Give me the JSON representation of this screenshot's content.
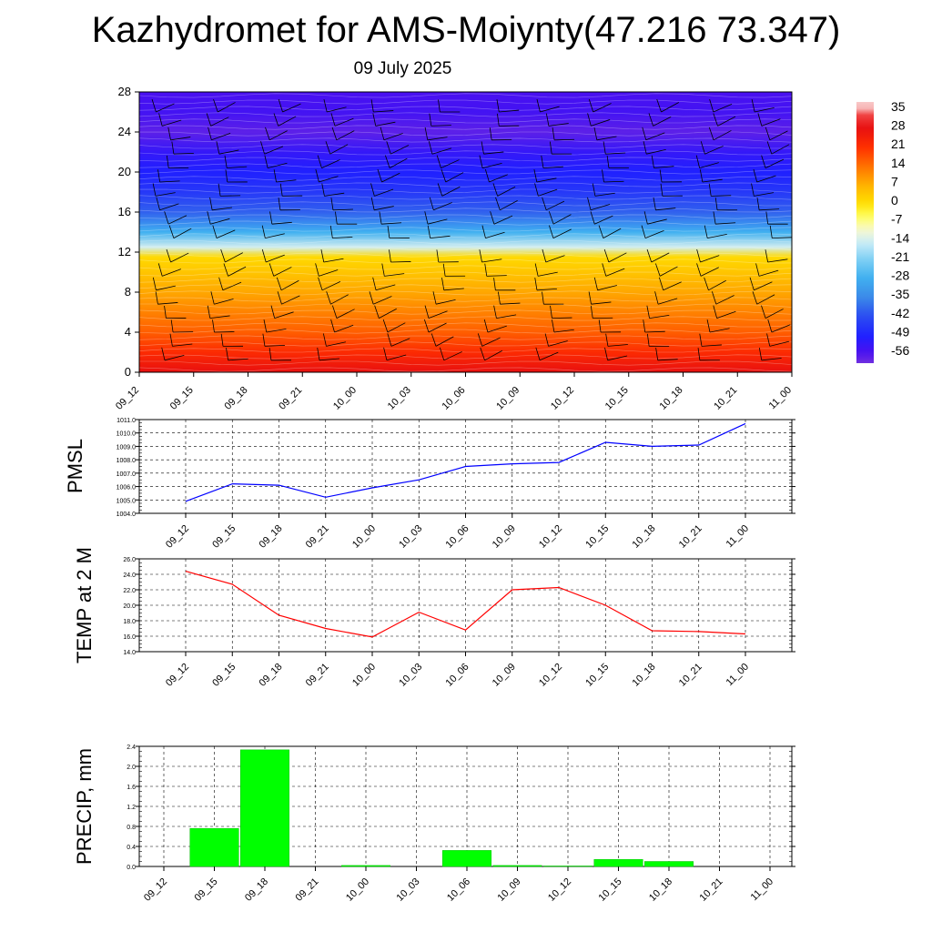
{
  "header": {
    "title": "Kazhydromet for AMS-Moiynty(47.216 73.347)",
    "date": "09 July 2025"
  },
  "colors": {
    "pmsl_line": "#0000ff",
    "temp_line": "#ff0000",
    "precip_bar": "#00ff00",
    "precip_bar_edge": "#00c000"
  },
  "chart_data": [
    {
      "type": "heatmap",
      "title": "",
      "x": [
        "09_12",
        "09_15",
        "09_18",
        "09_21",
        "10_00",
        "10_03",
        "10_06",
        "10_09",
        "10_12",
        "10_15",
        "10_18",
        "10_21",
        "11_00"
      ],
      "ylim": [
        0,
        28
      ],
      "yticks": [
        0,
        4,
        8,
        12,
        16,
        20,
        24,
        28
      ],
      "colorbar": {
        "labels": [
          "35",
          "28",
          "21",
          "14",
          "7",
          "0",
          "-7",
          "-14",
          "-21",
          "-28",
          "-35",
          "-42",
          "-49",
          "-56"
        ],
        "values": [
          35,
          28,
          21,
          14,
          7,
          0,
          -7,
          -14,
          -21,
          -28,
          -35,
          -42,
          -49,
          -56
        ]
      },
      "temperature_profile": {
        "heights": [
          0,
          2,
          4,
          6,
          8,
          10,
          11.5,
          12.5,
          14,
          16,
          18,
          20,
          22,
          24,
          26,
          28
        ],
        "values": [
          28,
          22,
          16,
          12,
          8,
          4,
          1,
          -14,
          -28,
          -40,
          -46,
          -50,
          -53,
          -58,
          -55,
          -56
        ]
      }
    },
    {
      "type": "line",
      "ylabel": "PMSL",
      "x": [
        "09_12",
        "09_15",
        "09_18",
        "09_21",
        "10_00",
        "10_03",
        "10_06",
        "10_09",
        "10_12",
        "10_15",
        "10_18",
        "10_21",
        "11_00"
      ],
      "values": [
        1004.9,
        1006.2,
        1006.1,
        1005.2,
        1005.9,
        1006.5,
        1007.5,
        1007.7,
        1007.8,
        1009.3,
        1009.0,
        1009.1,
        1010.7
      ],
      "ylim": [
        1004.0,
        1011.0
      ],
      "yticks": [
        "1004.0",
        "1005.0",
        "1006.0",
        "1007.0",
        "1008.0",
        "1009.0",
        "1010.0",
        "1011.0"
      ],
      "grid": true
    },
    {
      "type": "line",
      "ylabel": "TEMP at 2 M",
      "x": [
        "09_12",
        "09_15",
        "09_18",
        "09_21",
        "10_00",
        "10_03",
        "10_06",
        "10_09",
        "10_12",
        "10_15",
        "10_18",
        "10_21",
        "11_00"
      ],
      "values": [
        24.4,
        22.7,
        18.7,
        17.0,
        15.9,
        19.1,
        16.8,
        22.0,
        22.3,
        20.0,
        16.7,
        16.6,
        16.3
      ],
      "ylim": [
        14.0,
        26.0
      ],
      "yticks": [
        "14.0",
        "16.0",
        "18.0",
        "20.0",
        "22.0",
        "24.0",
        "26.0"
      ],
      "grid": true
    },
    {
      "type": "bar",
      "ylabel": "PRECIP, mm",
      "categories": [
        "09_12",
        "09_15",
        "09_18",
        "09_21",
        "10_00",
        "10_03",
        "10_06",
        "10_09",
        "10_12",
        "10_15",
        "10_18",
        "10_21",
        "11_00"
      ],
      "values": [
        0,
        0.76,
        2.33,
        0,
        0.02,
        0,
        0.32,
        0.02,
        0.01,
        0.14,
        0.1,
        0,
        0
      ],
      "ylim": [
        0,
        2.4
      ],
      "yticks": [
        "0.0",
        "0.4",
        "0.8",
        "1.2",
        "1.6",
        "2.0",
        "2.4"
      ],
      "grid": true
    }
  ]
}
